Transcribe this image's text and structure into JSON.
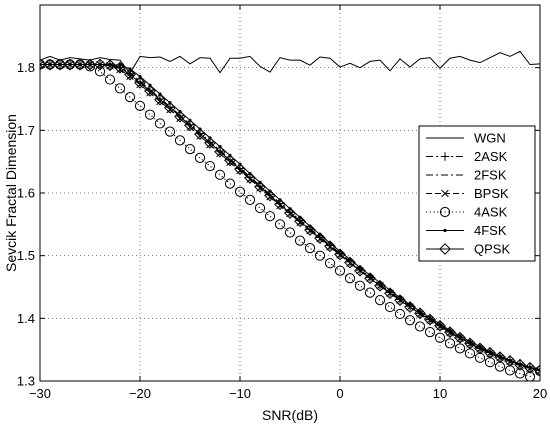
{
  "chart_data": {
    "type": "line",
    "title": "",
    "xlabel": "SNR(dB)",
    "ylabel": "Sevcik Fractal Dimension",
    "xlim": [
      -30,
      20
    ],
    "ylim": [
      1.3,
      1.9
    ],
    "xticks": [
      -30,
      -20,
      -10,
      0,
      10,
      20
    ],
    "yticks": [
      1.3,
      1.4,
      1.5,
      1.6,
      1.7,
      1.8
    ],
    "xtick_labels": [
      "−30",
      "−20",
      "−10",
      "0",
      "10",
      "20"
    ],
    "ytick_labels": [
      "1.3",
      "1.4",
      "1.5",
      "1.6",
      "1.7",
      "1.8"
    ],
    "grid": true,
    "legend_position": "right",
    "x": [
      -30,
      -29,
      -28,
      -27,
      -26,
      -25,
      -24,
      -23,
      -22,
      -21,
      -20,
      -19,
      -18,
      -17,
      -16,
      -15,
      -14,
      -13,
      -12,
      -11,
      -10,
      -9,
      -8,
      -7,
      -6,
      -5,
      -4,
      -3,
      -2,
      -1,
      0,
      1,
      2,
      3,
      4,
      5,
      6,
      7,
      8,
      9,
      10,
      11,
      12,
      13,
      14,
      15,
      16,
      17,
      18,
      19,
      20
    ],
    "series": [
      {
        "name": "WGN",
        "line": "solid",
        "marker": "none",
        "values": [
          1.812,
          1.818,
          1.812,
          1.816,
          1.814,
          1.812,
          1.816,
          1.813,
          1.812,
          1.791,
          1.818,
          1.816,
          1.817,
          1.81,
          1.818,
          1.806,
          1.816,
          1.815,
          1.792,
          1.815,
          1.815,
          1.818,
          1.802,
          1.793,
          1.816,
          1.812,
          1.812,
          1.804,
          1.817,
          1.815,
          1.801,
          1.807,
          1.8,
          1.81,
          1.812,
          1.795,
          1.814,
          1.801,
          1.814,
          1.816,
          1.799,
          1.815,
          1.818,
          1.812,
          1.808,
          1.816,
          1.824,
          1.818,
          1.826,
          1.805,
          1.806
        ]
      },
      {
        "name": "2ASK",
        "line": "dashdot",
        "marker": "plus",
        "values": [
          1.805,
          1.805,
          1.805,
          1.805,
          1.805,
          1.805,
          1.805,
          1.804,
          1.8,
          1.79,
          1.777,
          1.764,
          1.75,
          1.737,
          1.723,
          1.709,
          1.695,
          1.681,
          1.667,
          1.653,
          1.639,
          1.625,
          1.611,
          1.597,
          1.583,
          1.569,
          1.556,
          1.542,
          1.529,
          1.516,
          1.503,
          1.49,
          1.477,
          1.465,
          1.453,
          1.441,
          1.43,
          1.419,
          1.408,
          1.398,
          1.388,
          1.378,
          1.369,
          1.36,
          1.352,
          1.345,
          1.338,
          1.332,
          1.326,
          1.321,
          1.317
        ]
      },
      {
        "name": "2FSK",
        "line": "dashdot",
        "marker": "none",
        "values": [
          1.805,
          1.805,
          1.805,
          1.805,
          1.805,
          1.805,
          1.805,
          1.804,
          1.801,
          1.792,
          1.779,
          1.765,
          1.751,
          1.738,
          1.724,
          1.71,
          1.696,
          1.682,
          1.668,
          1.654,
          1.64,
          1.626,
          1.612,
          1.598,
          1.584,
          1.57,
          1.557,
          1.543,
          1.53,
          1.517,
          1.504,
          1.491,
          1.478,
          1.466,
          1.454,
          1.442,
          1.431,
          1.42,
          1.409,
          1.399,
          1.389,
          1.379,
          1.37,
          1.361,
          1.353,
          1.346,
          1.339,
          1.332,
          1.326,
          1.321,
          1.317
        ]
      },
      {
        "name": "BPSK",
        "line": "dashed",
        "marker": "x",
        "values": [
          1.805,
          1.805,
          1.805,
          1.805,
          1.805,
          1.805,
          1.805,
          1.803,
          1.797,
          1.786,
          1.773,
          1.76,
          1.746,
          1.733,
          1.719,
          1.705,
          1.691,
          1.677,
          1.663,
          1.649,
          1.636,
          1.622,
          1.608,
          1.594,
          1.58,
          1.567,
          1.553,
          1.54,
          1.527,
          1.514,
          1.501,
          1.488,
          1.476,
          1.464,
          1.452,
          1.44,
          1.429,
          1.418,
          1.407,
          1.397,
          1.387,
          1.377,
          1.368,
          1.359,
          1.351,
          1.344,
          1.337,
          1.331,
          1.325,
          1.32,
          1.316
        ]
      },
      {
        "name": "4ASK",
        "line": "dotted",
        "marker": "circle",
        "values": [
          1.805,
          1.805,
          1.805,
          1.805,
          1.805,
          1.802,
          1.794,
          1.781,
          1.767,
          1.753,
          1.739,
          1.725,
          1.711,
          1.698,
          1.684,
          1.67,
          1.656,
          1.643,
          1.629,
          1.615,
          1.602,
          1.589,
          1.576,
          1.563,
          1.55,
          1.537,
          1.524,
          1.512,
          1.5,
          1.488,
          1.476,
          1.464,
          1.452,
          1.441,
          1.429,
          1.418,
          1.407,
          1.397,
          1.387,
          1.378,
          1.369,
          1.36,
          1.352,
          1.344,
          1.337,
          1.33,
          1.323,
          1.317,
          1.312,
          1.307,
          1.316
        ]
      },
      {
        "name": "4FSK",
        "line": "solid",
        "marker": "dot",
        "values": [
          1.805,
          1.805,
          1.805,
          1.805,
          1.805,
          1.805,
          1.805,
          1.805,
          1.804,
          1.798,
          1.786,
          1.772,
          1.758,
          1.744,
          1.73,
          1.716,
          1.702,
          1.688,
          1.674,
          1.66,
          1.646,
          1.631,
          1.617,
          1.603,
          1.589,
          1.575,
          1.561,
          1.547,
          1.534,
          1.52,
          1.507,
          1.494,
          1.481,
          1.469,
          1.457,
          1.445,
          1.433,
          1.422,
          1.411,
          1.401,
          1.391,
          1.381,
          1.372,
          1.363,
          1.355,
          1.347,
          1.34,
          1.333,
          1.327,
          1.322,
          1.318
        ]
      },
      {
        "name": "QPSK",
        "line": "solid",
        "marker": "diamond",
        "values": [
          1.805,
          1.805,
          1.805,
          1.805,
          1.805,
          1.805,
          1.805,
          1.804,
          1.8,
          1.789,
          1.776,
          1.763,
          1.749,
          1.736,
          1.722,
          1.708,
          1.694,
          1.68,
          1.666,
          1.652,
          1.638,
          1.624,
          1.61,
          1.596,
          1.582,
          1.568,
          1.555,
          1.541,
          1.528,
          1.515,
          1.502,
          1.489,
          1.476,
          1.464,
          1.452,
          1.44,
          1.429,
          1.418,
          1.408,
          1.398,
          1.388,
          1.378,
          1.369,
          1.36,
          1.352,
          1.345,
          1.338,
          1.332,
          1.326,
          1.321,
          1.317
        ]
      }
    ]
  }
}
